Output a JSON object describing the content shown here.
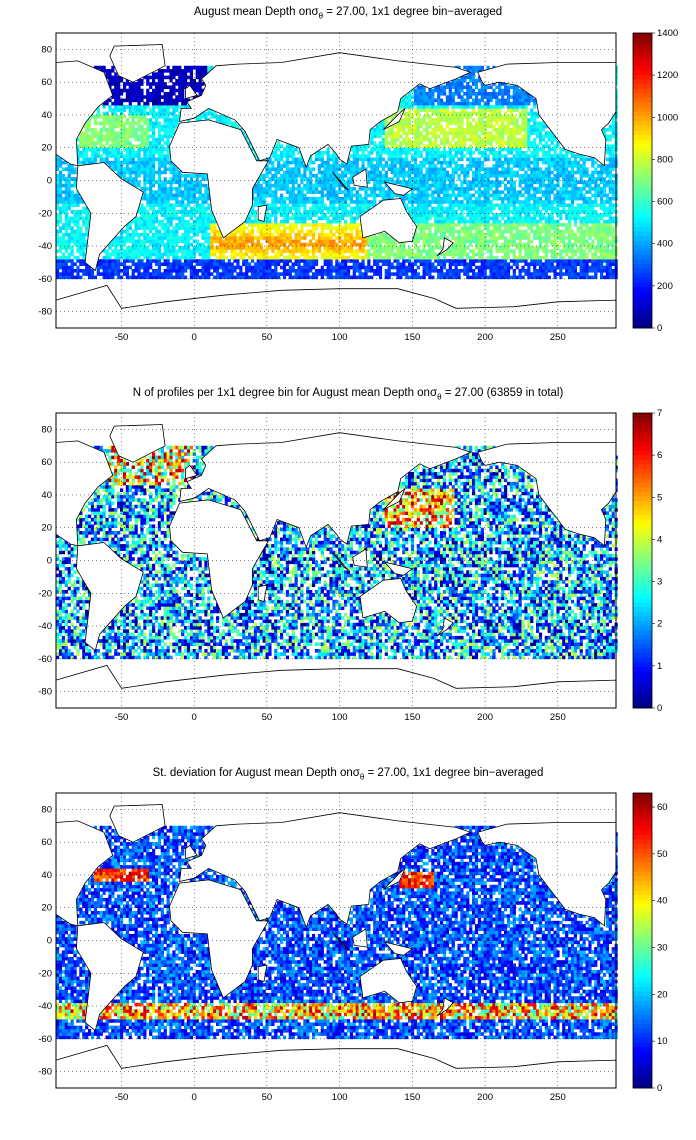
{
  "chart_data": [
    {
      "type": "heatmap",
      "title_pre": "August mean Depth on",
      "title_sym": "σ",
      "title_sub": "θ",
      "title_post": " = 27.00, 1x1 degree bin−averaged",
      "xlim": [
        -95,
        290
      ],
      "ylim": [
        -90,
        90
      ],
      "x_ticks": [
        -50,
        0,
        50,
        100,
        150,
        200,
        250
      ],
      "y_ticks": [
        -80,
        -60,
        -40,
        -20,
        0,
        20,
        40,
        60,
        80
      ],
      "grid": true,
      "colorbar": {
        "min": 0,
        "max": 1400,
        "ticks": [
          0,
          200,
          400,
          600,
          800,
          1000,
          1200,
          1400
        ],
        "colormap": "jet"
      },
      "field": "depth"
    },
    {
      "type": "heatmap",
      "title_pre": "N of profiles per 1x1 degree bin for August mean Depth on",
      "title_sym": "σ",
      "title_sub": "θ",
      "title_post": " = 27.00 (63859 in total)",
      "xlim": [
        -95,
        290
      ],
      "ylim": [
        -90,
        90
      ],
      "x_ticks": [
        -50,
        0,
        50,
        100,
        150,
        200,
        250
      ],
      "y_ticks": [
        -80,
        -60,
        -40,
        -20,
        0,
        20,
        40,
        60,
        80
      ],
      "grid": true,
      "colorbar": {
        "min": 0,
        "max": 7,
        "ticks": [
          0,
          1,
          2,
          3,
          4,
          5,
          6,
          7
        ],
        "colormap": "jet"
      },
      "field": "count"
    },
    {
      "type": "heatmap",
      "title_pre": "St. deviation for August mean Depth on",
      "title_sym": "σ",
      "title_sub": "θ",
      "title_post": " = 27.00, 1x1 degree bin−averaged",
      "xlim": [
        -95,
        290
      ],
      "ylim": [
        -90,
        90
      ],
      "x_ticks": [
        -50,
        0,
        50,
        100,
        150,
        200,
        250
      ],
      "y_ticks": [
        -80,
        -60,
        -40,
        -20,
        0,
        20,
        40,
        60,
        80
      ],
      "grid": true,
      "colorbar": {
        "min": 0,
        "max": 63,
        "ticks": [
          0,
          10,
          20,
          30,
          40,
          50,
          60
        ],
        "colormap": "jet"
      },
      "field": "std"
    }
  ]
}
